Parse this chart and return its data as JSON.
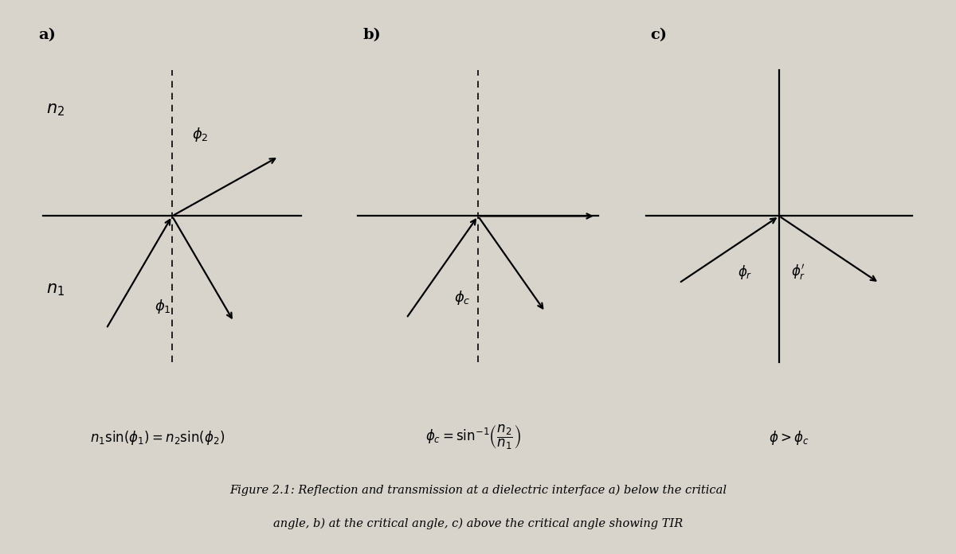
{
  "bg_color": "#d8d4cc",
  "fig_width": 12.0,
  "fig_height": 6.96,
  "dpi": 100,
  "caption_line1": "Figure 2.1: Reflection and transmission at a dielectric interface a) below the critical",
  "caption_line2": "angle, b) at the critical angle, c) above the critical angle showing TIR",
  "lw": 1.6,
  "arrow_scale": 11
}
